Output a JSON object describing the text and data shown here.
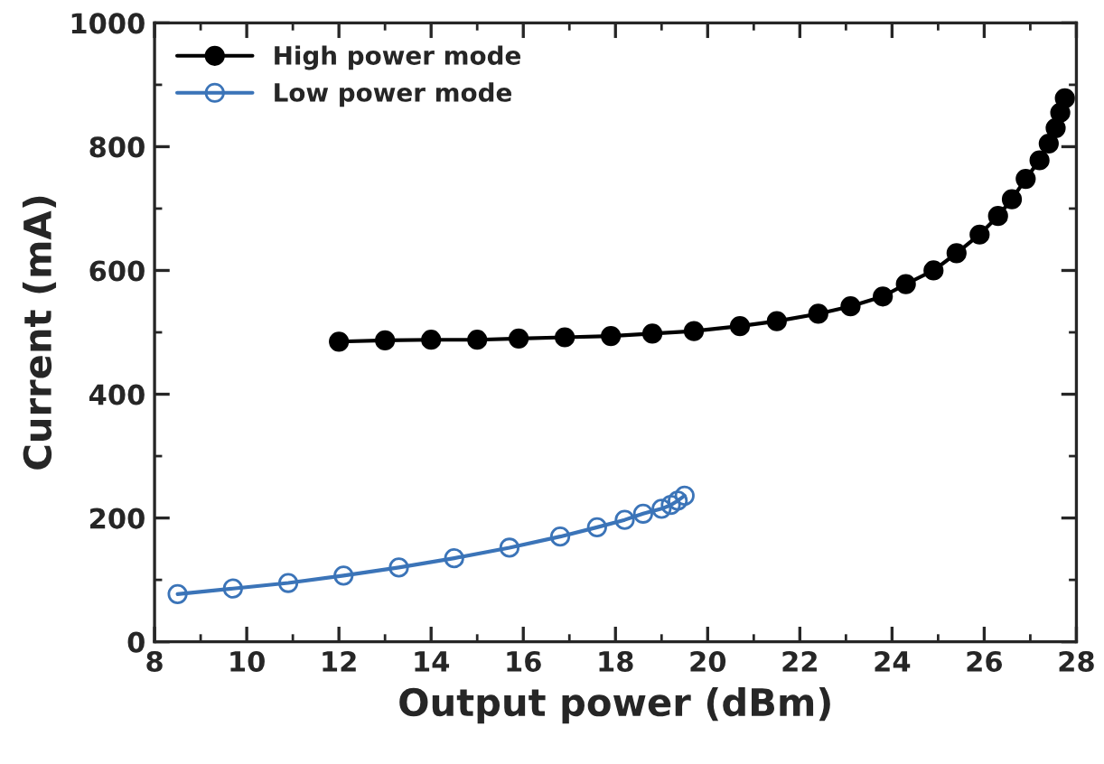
{
  "chart_data": {
    "type": "line",
    "xlabel": "Output power (dBm)",
    "ylabel": "Current (mA)",
    "xlim": [
      8,
      28
    ],
    "xticks": [
      8,
      10,
      12,
      14,
      16,
      18,
      20,
      22,
      24,
      26,
      28
    ],
    "ylim": [
      0,
      1000
    ],
    "yticks": [
      0,
      200,
      400,
      600,
      800,
      1000
    ],
    "grid": false,
    "legend": "top left",
    "series": [
      {
        "name": "High power mode",
        "color": "#000000",
        "marker": "circle",
        "x": [
          12.0,
          13.0,
          14.0,
          15.0,
          15.9,
          16.9,
          17.9,
          18.8,
          19.7,
          20.7,
          21.5,
          22.4,
          23.1,
          23.8,
          24.3,
          24.9,
          25.4,
          25.9,
          26.3,
          26.6,
          26.9,
          27.2,
          27.4,
          27.55,
          27.65,
          27.75
        ],
        "values": [
          485,
          487,
          488,
          488,
          490,
          492,
          494,
          498,
          502,
          510,
          518,
          530,
          542,
          558,
          578,
          600,
          628,
          658,
          688,
          715,
          748,
          778,
          805,
          830,
          855,
          878
        ]
      },
      {
        "name": "Low power mode",
        "color": "#3b74b8",
        "marker": "circle",
        "x": [
          8.5,
          9.7,
          10.9,
          12.1,
          13.3,
          14.5,
          15.7,
          16.8,
          17.6,
          18.2,
          18.6,
          19.0,
          19.2,
          19.35,
          19.5
        ],
        "values": [
          77,
          86,
          95,
          107,
          120,
          135,
          152,
          170,
          185,
          197,
          207,
          215,
          221,
          228,
          236
        ]
      }
    ]
  }
}
